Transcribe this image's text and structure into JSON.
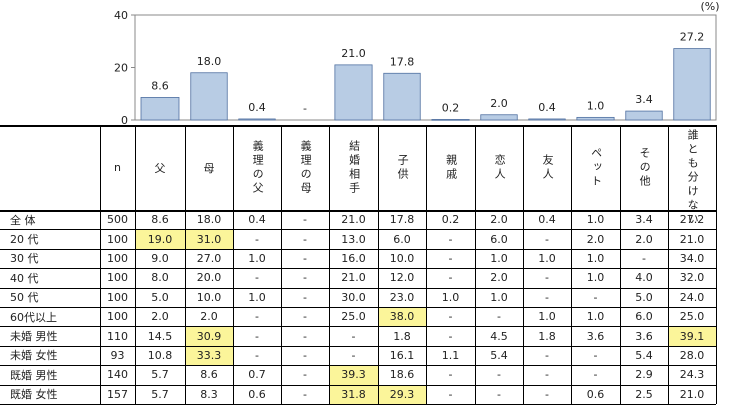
{
  "chart_data": {
    "type": "bar",
    "unit_label": "(%)",
    "ylim": [
      0,
      40
    ],
    "yticks": [
      "0",
      "20",
      "40"
    ],
    "categories": [
      "父",
      "母",
      "義理の父",
      "義理の母",
      "結婚相手",
      "子供",
      "親戚",
      "恋人",
      "友人",
      "ペット",
      "その他",
      "誰とも分けない"
    ],
    "values": [
      8.6,
      18.0,
      0.4,
      null,
      21.0,
      17.8,
      0.2,
      2.0,
      0.4,
      1.0,
      3.4,
      27.2
    ],
    "value_labels": [
      "8.6",
      "18.0",
      "0.4",
      "-",
      "21.0",
      "17.8",
      "0.2",
      "2.0",
      "0.4",
      "1.0",
      "3.4",
      "27.2"
    ],
    "bar_color": "#b8cce4",
    "bar_border": "#4f6fa0"
  },
  "table": {
    "header_n": "n",
    "columns": [
      "父",
      "母",
      "義理の父",
      "義理の母",
      "結婚相手",
      "子供",
      "親戚",
      "恋人",
      "友人",
      "ペット",
      "その他",
      "誰とも分けない"
    ],
    "highlight_color": "#fbf59a",
    "rows": [
      {
        "label": "全 体",
        "n": "500",
        "values": [
          "8.6",
          "18.0",
          "0.4",
          "-",
          "21.0",
          "17.8",
          "0.2",
          "2.0",
          "0.4",
          "1.0",
          "3.4",
          "27.2"
        ],
        "hl": []
      },
      {
        "label": "20 代",
        "n": "100",
        "values": [
          "19.0",
          "31.0",
          "-",
          "-",
          "13.0",
          "6.0",
          "-",
          "6.0",
          "-",
          "2.0",
          "2.0",
          "21.0"
        ],
        "hl": [
          0,
          1
        ]
      },
      {
        "label": "30 代",
        "n": "100",
        "values": [
          "9.0",
          "27.0",
          "1.0",
          "-",
          "16.0",
          "10.0",
          "-",
          "1.0",
          "1.0",
          "1.0",
          "-",
          "34.0"
        ],
        "hl": []
      },
      {
        "label": "40 代",
        "n": "100",
        "values": [
          "8.0",
          "20.0",
          "-",
          "-",
          "21.0",
          "12.0",
          "-",
          "2.0",
          "-",
          "1.0",
          "4.0",
          "32.0"
        ],
        "hl": []
      },
      {
        "label": "50 代",
        "n": "100",
        "values": [
          "5.0",
          "10.0",
          "1.0",
          "-",
          "30.0",
          "23.0",
          "1.0",
          "1.0",
          "-",
          "-",
          "5.0",
          "24.0"
        ],
        "hl": []
      },
      {
        "label": "60代以上",
        "n": "100",
        "values": [
          "2.0",
          "2.0",
          "-",
          "-",
          "25.0",
          "38.0",
          "-",
          "-",
          "1.0",
          "1.0",
          "6.0",
          "25.0"
        ],
        "hl": [
          5
        ]
      },
      {
        "label": "未婚 男性",
        "n": "110",
        "values": [
          "14.5",
          "30.9",
          "-",
          "-",
          "-",
          "1.8",
          "-",
          "4.5",
          "1.8",
          "3.6",
          "3.6",
          "39.1"
        ],
        "hl": [
          1,
          11
        ]
      },
      {
        "label": "未婚 女性",
        "n": "93",
        "values": [
          "10.8",
          "33.3",
          "-",
          "-",
          "-",
          "16.1",
          "1.1",
          "5.4",
          "-",
          "-",
          "5.4",
          "28.0"
        ],
        "hl": [
          1
        ]
      },
      {
        "label": "既婚 男性",
        "n": "140",
        "values": [
          "5.7",
          "8.6",
          "0.7",
          "-",
          "39.3",
          "18.6",
          "-",
          "-",
          "-",
          "-",
          "2.9",
          "24.3"
        ],
        "hl": [
          4
        ]
      },
      {
        "label": "既婚 女性",
        "n": "157",
        "values": [
          "5.7",
          "8.3",
          "0.6",
          "-",
          "31.8",
          "29.3",
          "-",
          "-",
          "-",
          "0.6",
          "2.5",
          "21.0"
        ],
        "hl": [
          4,
          5
        ]
      }
    ]
  }
}
